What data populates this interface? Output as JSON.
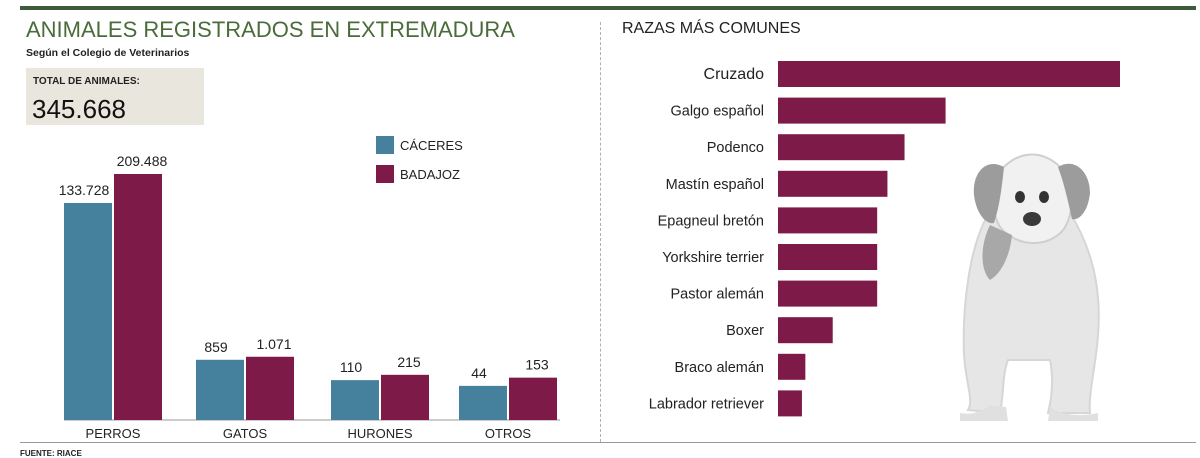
{
  "header": {
    "title": "ANIMALES REGISTRADOS EN EXTREMADURA",
    "subtitle": "Según el Colegio de Veterinarios",
    "total_label": "TOTAL DE ANIMALES:",
    "total_value": "345.668",
    "source": "FUENTE:  RIACE"
  },
  "colors": {
    "caceres": "#45809c",
    "badajoz": "#7d1a48",
    "title_green": "#4a6b3a"
  },
  "chart_data": [
    {
      "type": "bar",
      "title": "",
      "categories": [
        "PERROS",
        "GATOS",
        "HURONES",
        "OTROS"
      ],
      "value_labels": {
        "caceres": [
          "133.728",
          "859",
          "110",
          "44"
        ],
        "badajoz": [
          "209.488",
          "1.071",
          "215",
          "153"
        ]
      },
      "series": [
        {
          "name": "CÁCERES",
          "values": [
            133728,
            859,
            110,
            44
          ]
        },
        {
          "name": "BADAJOZ",
          "values": [
            209488,
            1071,
            215,
            153
          ]
        }
      ],
      "scale": "non-linear (bars not proportional)",
      "legend": "top-right"
    },
    {
      "type": "bar",
      "orientation": "horizontal",
      "title": "RAZAS MÁS COMUNES",
      "categories": [
        "Cruzado",
        "Galgo español",
        "Podenco",
        "Mastín español",
        "Epagneul bretón",
        "Yorkshire terrier",
        "Pastor alemán",
        "Boxer",
        "Braco alemán",
        "Labrador retriever"
      ],
      "relative_values": [
        100,
        49,
        37,
        32,
        29,
        29,
        29,
        16,
        8,
        7
      ],
      "color": "#7d1a48"
    }
  ],
  "decoration": {
    "illustration": "dog-illustration"
  }
}
